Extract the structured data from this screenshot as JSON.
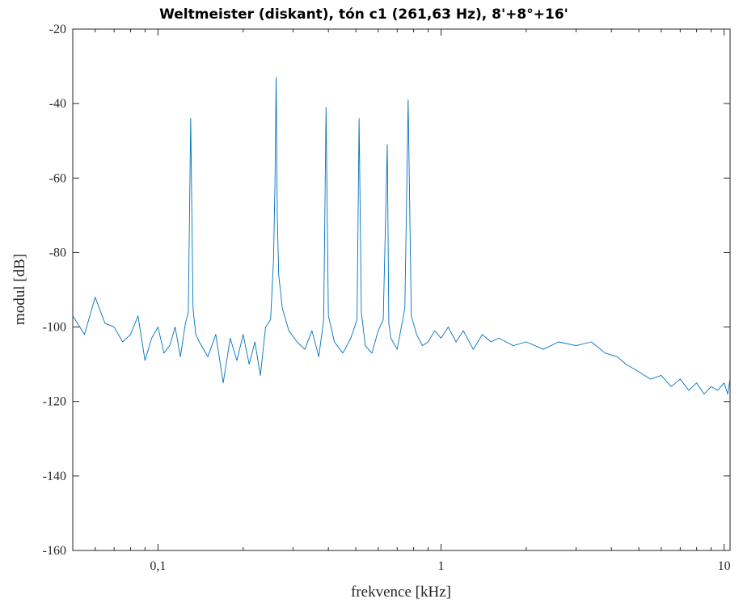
{
  "chart_data": {
    "type": "line",
    "title": "Weltmeister (diskant), tón c1 (261,63 Hz), 8'+8°+16'",
    "xlabel": "frekvence [kHz]",
    "ylabel": "modul [dB]",
    "xscale": "log",
    "xlim": [
      0.05,
      10.5
    ],
    "ylim": [
      -160,
      -20
    ],
    "x_ticks": [
      0.1,
      1,
      10
    ],
    "x_tick_labels": [
      "0,1",
      "1",
      "10"
    ],
    "y_ticks": [
      -160,
      -140,
      -120,
      -100,
      -80,
      -60,
      -40,
      -20
    ],
    "y_tick_labels": [
      "-160",
      "-140",
      "-120",
      "-100",
      "-80",
      "-60",
      "-40",
      "-20"
    ],
    "grid": false,
    "line_color": "#0072BD",
    "series": [
      {
        "x": [
          0.05,
          0.055,
          0.06,
          0.065,
          0.07,
          0.075,
          0.08,
          0.085,
          0.09,
          0.095,
          0.1,
          0.105,
          0.11,
          0.115,
          0.12,
          0.125,
          0.128,
          0.1305,
          0.133,
          0.136,
          0.14,
          0.15,
          0.16,
          0.17,
          0.18,
          0.19,
          0.2,
          0.21,
          0.22,
          0.23,
          0.24,
          0.25,
          0.256,
          0.259,
          0.2615,
          0.264,
          0.267,
          0.275,
          0.29,
          0.31,
          0.33,
          0.35,
          0.37,
          0.385,
          0.3925,
          0.4,
          0.42,
          0.45,
          0.48,
          0.505,
          0.5135,
          0.523,
          0.54,
          0.57,
          0.6,
          0.625,
          0.646,
          0.654,
          0.665,
          0.7,
          0.745,
          0.7655,
          0.785,
          0.82,
          0.86,
          0.9,
          0.95,
          1.0,
          1.06,
          1.13,
          1.2,
          1.3,
          1.4,
          1.5,
          1.6,
          1.8,
          2.0,
          2.3,
          2.6,
          3.0,
          3.4,
          3.8,
          4.2,
          4.5,
          5.0,
          5.5,
          6.0,
          6.5,
          7.0,
          7.5,
          8.0,
          8.5,
          9.0,
          9.5,
          10.0,
          10.3,
          10.5
        ],
        "y": [
          -97,
          -102,
          -92,
          -99,
          -100,
          -104,
          -102,
          -97,
          -109,
          -103,
          -100,
          -107,
          -105,
          -100,
          -108,
          -99,
          -96,
          -44,
          -95,
          -102,
          -104,
          -108,
          -102,
          -115,
          -103,
          -109,
          -102,
          -110,
          -104,
          -113,
          -100,
          -98,
          -82,
          -62,
          -33,
          -70,
          -86,
          -95,
          -101,
          -104,
          -106,
          -101,
          -108,
          -98,
          -41,
          -97,
          -104,
          -107,
          -103,
          -98,
          -44,
          -96,
          -105,
          -107,
          -101,
          -98,
          -51,
          -99,
          -103,
          -106,
          -95,
          -39,
          -97,
          -102,
          -105,
          -104,
          -101,
          -103,
          -100,
          -104,
          -101,
          -106,
          -102,
          -104,
          -103,
          -105,
          -104,
          -106,
          -104,
          -105,
          -104,
          -107,
          -108,
          -110,
          -112,
          -114,
          -113,
          -116,
          -114,
          -117,
          -115,
          -118,
          -116,
          -117,
          -115,
          -118,
          -114
        ]
      }
    ]
  }
}
